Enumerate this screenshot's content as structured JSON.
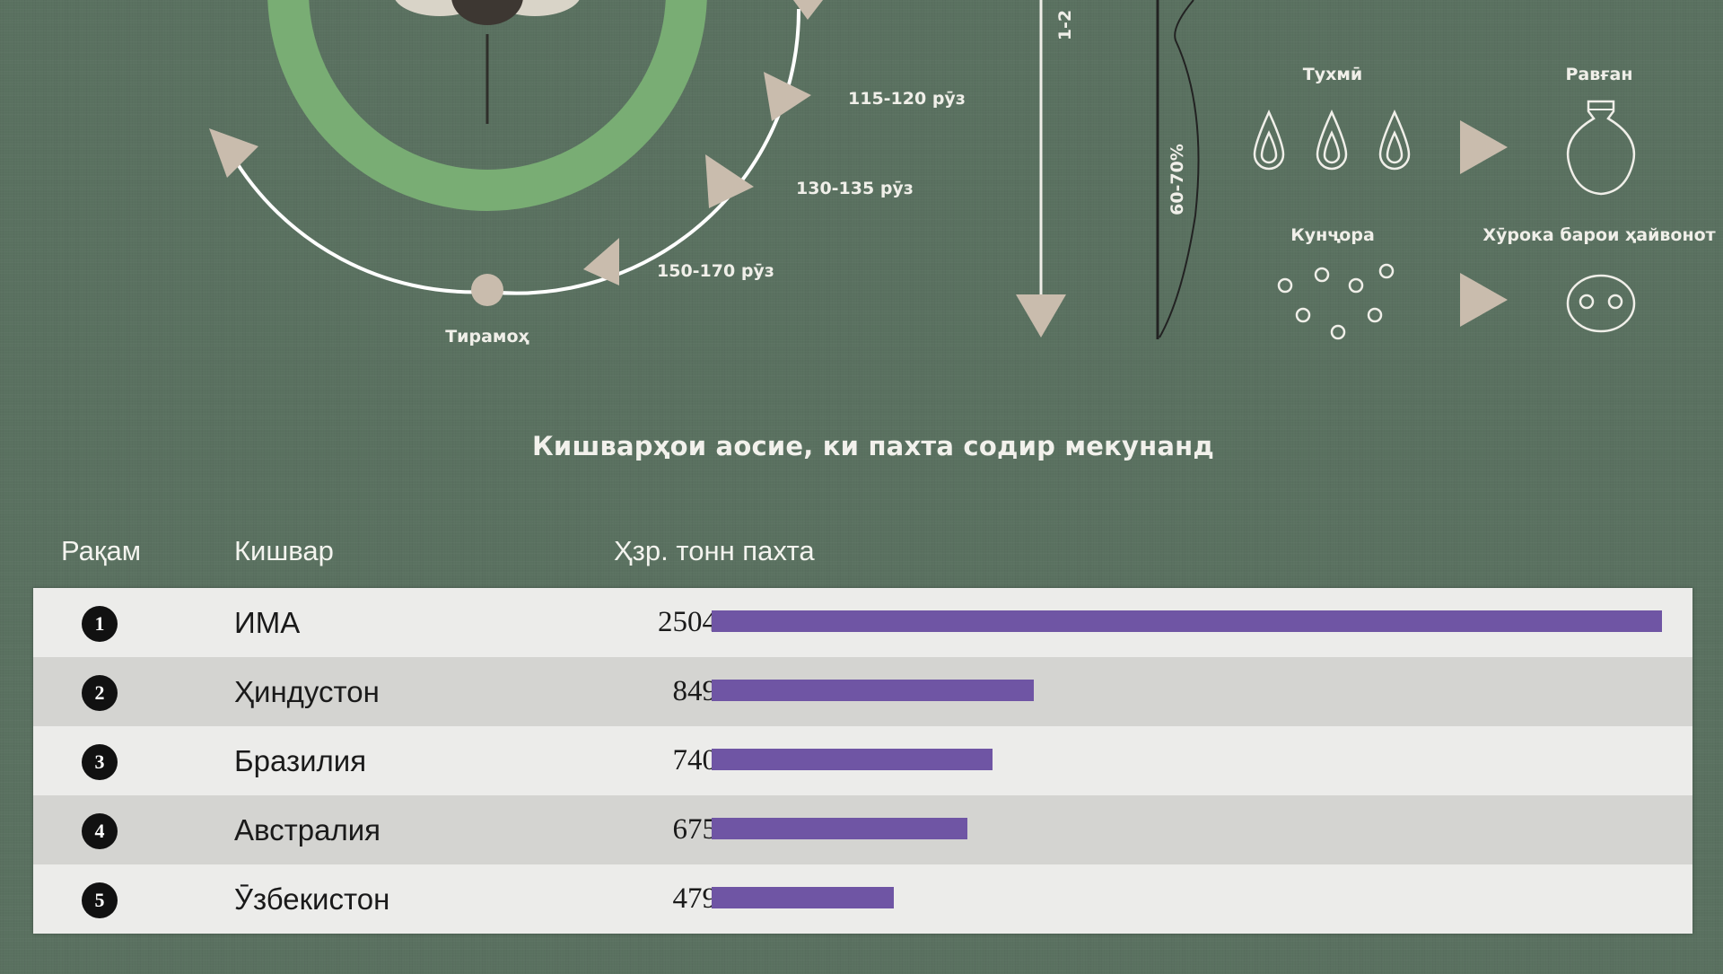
{
  "top": {
    "durations": [
      "115-120 рӯз",
      "130-135 рӯз",
      "150-170 рӯз"
    ],
    "autumn_label": "Тирамоҳ",
    "vertical_labels": [
      "1-2",
      "60-70%"
    ],
    "products": {
      "seeds_label": "Тухмӣ",
      "oil_label": "Равған",
      "cake_label": "Кунҷора",
      "feed_label": "Хӯрока барои ҳайвонот"
    }
  },
  "section_title": "Кишварҳои аосие, ки пахта содир мекунанд",
  "table": {
    "headers": {
      "rank": "Рақам",
      "country": "Кишвар",
      "value": "Ҳзр. тонн пахта"
    }
  },
  "chart_data": {
    "type": "bar",
    "orientation": "horizontal",
    "title": "Кишварҳои аосие, ки пахта содир мекунанд",
    "xlabel": "",
    "ylabel": "Ҳзр. тонн пахта",
    "categories": [
      "ИМА",
      "Ҳиндустон",
      "Бразилия",
      "Австралия",
      "Ӯзбекистон"
    ],
    "ranks": [
      "1",
      "2",
      "3",
      "4",
      "5"
    ],
    "values": [
      2504,
      849,
      740,
      675,
      479
    ],
    "value_labels": [
      "2504",
      "849",
      "740",
      "675",
      "479"
    ],
    "xlim": [
      0,
      2504
    ],
    "bar_color": "#6f55a4"
  },
  "colors": {
    "background": "#5a7160",
    "ring_green": "#79ad74",
    "arrow_beige": "#c9bcad",
    "bar_purple": "#6f55a4"
  }
}
